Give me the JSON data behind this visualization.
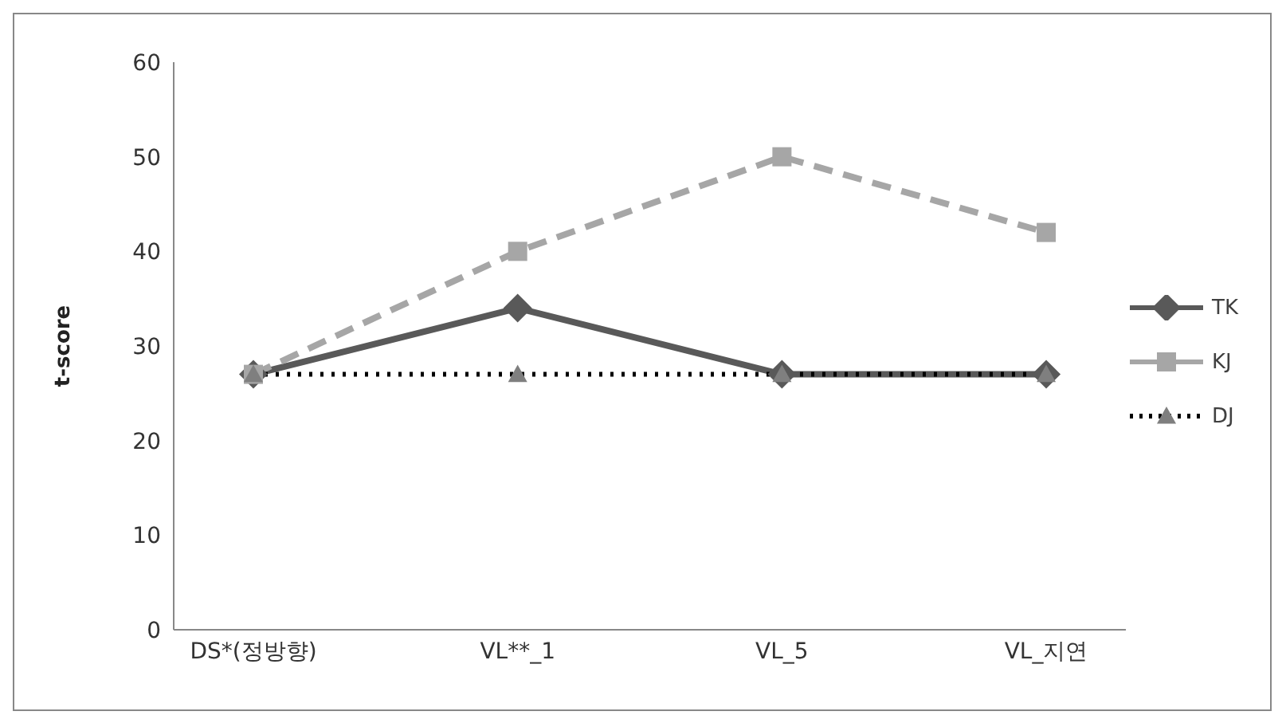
{
  "chart_data": {
    "type": "line",
    "ylabel": "t-score",
    "categories": [
      "DS*(정방향)",
      "VL**_1",
      "VL_5",
      "VL_지연"
    ],
    "series": [
      {
        "name": "TK",
        "color": "#595959",
        "values": [
          27,
          34,
          27,
          27
        ],
        "marker": "diamond",
        "line_style": "solid"
      },
      {
        "name": "KJ",
        "color": "#a6a6a6",
        "values": [
          27,
          40,
          50,
          42
        ],
        "marker": "square",
        "line_style": "dashed"
      },
      {
        "name": "DJ",
        "color": "#000000",
        "values": [
          27,
          27,
          27,
          27
        ],
        "marker": "triangle",
        "line_style": "dotted",
        "colors": [
          "#7f7f7f",
          "#7f7f7f",
          "#7f7f7f",
          "#7f7f7f"
        ]
      }
    ],
    "ylim": [
      0,
      60
    ],
    "yticks": [
      0,
      10,
      20,
      30,
      40,
      50,
      60
    ],
    "grid": false,
    "legend": "right"
  }
}
